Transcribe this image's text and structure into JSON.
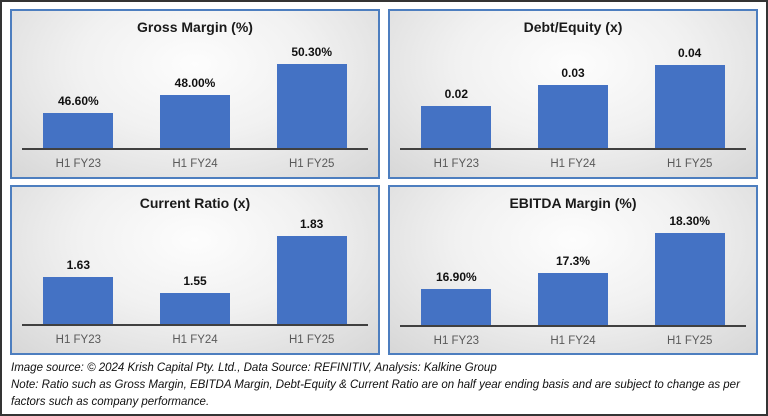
{
  "chart_data": [
    {
      "type": "bar",
      "title": "Gross Margin (%)",
      "categories": [
        "H1 FY23",
        "H1 FY24",
        "H1 FY25"
      ],
      "values": [
        46.6,
        48.0,
        50.3
      ],
      "value_labels": [
        "46.60%",
        "48.00%",
        "50.30%"
      ],
      "ylim": [
        44,
        51.5
      ],
      "bar_color": "#4472C4",
      "grid": "off",
      "legend": "none"
    },
    {
      "type": "bar",
      "title": "Debt/Equity (x)",
      "categories": [
        "H1 FY23",
        "H1 FY24",
        "H1 FY25"
      ],
      "values": [
        0.02,
        0.03,
        0.04
      ],
      "value_labels": [
        "0.02",
        "0.03",
        "0.04"
      ],
      "ylim": [
        0,
        0.048
      ],
      "bar_color": "#4472C4",
      "grid": "off",
      "legend": "none"
    },
    {
      "type": "bar",
      "title": "Current Ratio (x)",
      "categories": [
        "H1 FY23",
        "H1 FY24",
        "H1 FY25"
      ],
      "values": [
        1.63,
        1.55,
        1.83
      ],
      "value_labels": [
        "1.63",
        "1.55",
        "1.83"
      ],
      "ylim": [
        1.4,
        1.89
      ],
      "bar_color": "#4472C4",
      "grid": "off",
      "legend": "none"
    },
    {
      "type": "bar",
      "title": "EBITDA Margin (%)",
      "categories": [
        "H1 FY23",
        "H1 FY24",
        "H1 FY25"
      ],
      "values": [
        16.9,
        17.3,
        18.3
      ],
      "value_labels": [
        "16.90%",
        "17.3%",
        "18.30%"
      ],
      "ylim": [
        16,
        18.5
      ],
      "bar_color": "#4472C4",
      "grid": "off",
      "legend": "none"
    }
  ],
  "footer": {
    "line1": "Image source: © 2024 Krish Capital Pty. Ltd., Data Source: REFINITIV, Analysis: Kalkine Group",
    "line2": "Note: Ratio such as Gross Margin, EBITDA Margin, Debt-Equity & Current Ratio are on half year ending basis and are subject to change as per factors such as company performance."
  },
  "colors": {
    "bar": "#4472C4",
    "panel_border": "#4d7ebf",
    "outer_border": "#343434",
    "axis_line": "#404040",
    "tick_label": "#595959",
    "title_text": "#1a1a1a"
  }
}
